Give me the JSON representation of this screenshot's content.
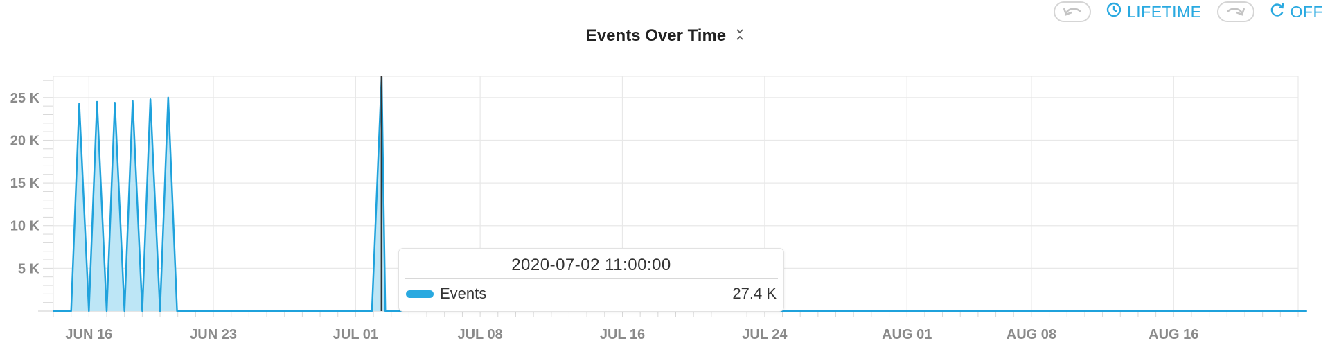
{
  "toolbar": {
    "undo_icon": "undo-icon",
    "lifetime_label": "LIFETIME",
    "redo_icon": "redo-icon",
    "refresh_label": "OFF"
  },
  "colors": {
    "accent": "#29a9e0",
    "line": "#1fa2dc",
    "fill": "#bde6f6",
    "marker": "#333333",
    "grid": "#e8e8e8"
  },
  "chart_data": {
    "type": "area",
    "title": "Events Over Time",
    "xlabel": "",
    "ylabel": "",
    "x_range": [
      "2020-06-14",
      "2020-08-23"
    ],
    "ylim": [
      0,
      27500
    ],
    "y_ticks": [
      {
        "value": 5000,
        "label": "5 K"
      },
      {
        "value": 10000,
        "label": "10 K"
      },
      {
        "value": 15000,
        "label": "15 K"
      },
      {
        "value": 20000,
        "label": "20 K"
      },
      {
        "value": 25000,
        "label": "25 K"
      }
    ],
    "x_ticks": [
      {
        "date": "2020-06-16",
        "label": "JUN 16"
      },
      {
        "date": "2020-06-23",
        "label": "JUN 23"
      },
      {
        "date": "2020-07-01",
        "label": "JUL 01"
      },
      {
        "date": "2020-07-08",
        "label": "JUL 08"
      },
      {
        "date": "2020-07-16",
        "label": "JUL 16"
      },
      {
        "date": "2020-07-24",
        "label": "JUL 24"
      },
      {
        "date": "2020-08-01",
        "label": "AUG 01"
      },
      {
        "date": "2020-08-08",
        "label": "AUG 08"
      },
      {
        "date": "2020-08-16",
        "label": "AUG 16"
      }
    ],
    "grid": true,
    "series": [
      {
        "name": "Events",
        "points": [
          {
            "t": "2020-06-14 00:00",
            "v": 0
          },
          {
            "t": "2020-06-15 00:00",
            "v": 0
          },
          {
            "t": "2020-06-15 11:00",
            "v": 24300
          },
          {
            "t": "2020-06-16 00:00",
            "v": 0
          },
          {
            "t": "2020-06-16 11:00",
            "v": 24500
          },
          {
            "t": "2020-06-17 00:00",
            "v": 0
          },
          {
            "t": "2020-06-17 11:00",
            "v": 24400
          },
          {
            "t": "2020-06-18 00:00",
            "v": 0
          },
          {
            "t": "2020-06-18 11:00",
            "v": 24600
          },
          {
            "t": "2020-06-19 00:00",
            "v": 0
          },
          {
            "t": "2020-06-19 11:00",
            "v": 24800
          },
          {
            "t": "2020-06-20 00:00",
            "v": 0
          },
          {
            "t": "2020-06-20 11:00",
            "v": 25000
          },
          {
            "t": "2020-06-20 23:00",
            "v": 0
          },
          {
            "t": "2020-07-01 22:00",
            "v": 0
          },
          {
            "t": "2020-07-02 11:00",
            "v": 27400
          },
          {
            "t": "2020-07-02 16:00",
            "v": 0
          },
          {
            "t": "2020-08-23 12:00",
            "v": 0
          }
        ]
      }
    ],
    "hover": {
      "time": "2020-07-02 11:00:00",
      "series": "Events",
      "value": 27400,
      "value_label": "27.4 K"
    }
  },
  "tooltip": {
    "date": "2020-07-02 11:00:00",
    "series_name": "Events",
    "value": "27.4 K"
  }
}
